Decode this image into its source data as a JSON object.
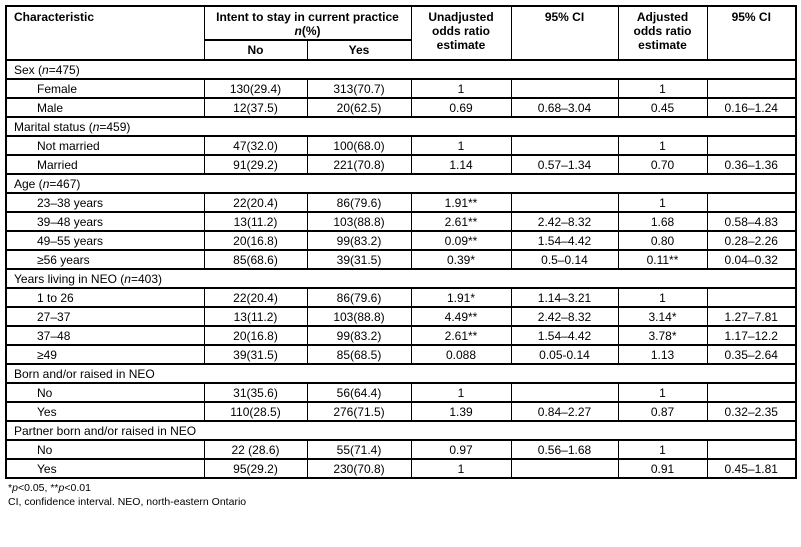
{
  "colors": {
    "border": "#000000",
    "background": "#ffffff",
    "text": "#000000"
  },
  "table": {
    "headers": {
      "characteristic": "Characteristic",
      "intent_line1": "Intent to stay in current practice",
      "intent_n": "n",
      "intent_pct": "(%)",
      "no": "No",
      "yes": "Yes",
      "unadjusted": "Unadjusted odds ratio estimate",
      "ci1": "95% CI",
      "adjusted": "Adjusted odds ratio estimate",
      "ci2": "95% CI"
    },
    "sections": [
      {
        "title_parts": [
          "Sex (",
          "n",
          "=475)"
        ],
        "rows": [
          {
            "label": "Female",
            "no": "130(29.4)",
            "yes": "313(70.7)",
            "uor": "1",
            "ci1": "",
            "aor": "1",
            "ci2": ""
          },
          {
            "label": "Male",
            "no": "12(37.5)",
            "yes": "20(62.5)",
            "uor": "0.69",
            "ci1": "0.68–3.04",
            "aor": "0.45",
            "ci2": "0.16–1.24"
          }
        ]
      },
      {
        "title_parts": [
          "Marital status (",
          "n",
          "=459)"
        ],
        "rows": [
          {
            "label": "Not married",
            "no": "47(32.0)",
            "yes": "100(68.0)",
            "uor": "1",
            "ci1": "",
            "aor": "1",
            "ci2": ""
          },
          {
            "label": "Married",
            "no": "91(29.2)",
            "yes": "221(70.8)",
            "uor": "1.14",
            "ci1": "0.57–1.34",
            "aor": "0.70",
            "ci2": "0.36–1.36"
          }
        ]
      },
      {
        "title_parts": [
          "Age (",
          "n",
          "=467)"
        ],
        "rows": [
          {
            "label": "23–38 years",
            "no": "22(20.4)",
            "yes": "86(79.6)",
            "uor": "1.91**",
            "ci1": "",
            "aor": "1",
            "ci2": ""
          },
          {
            "label": "39–48 years",
            "no": "13(11.2)",
            "yes": "103(88.8)",
            "uor": "2.61**",
            "ci1": "2.42–8.32",
            "aor": "1.68",
            "ci2": "0.58–4.83"
          },
          {
            "label": "49–55 years",
            "no": "20(16.8)",
            "yes": "99(83.2)",
            "uor": "0.09**",
            "ci1": "1.54–4.42",
            "aor": "0.80",
            "ci2": "0.28–2.26"
          },
          {
            "label": "≥56 years",
            "no": "85(68.6)",
            "yes": "39(31.5)",
            "uor": "0.39*",
            "ci1": "0.5–0.14",
            "aor": "0.11**",
            "ci2": "0.04–0.32"
          }
        ]
      },
      {
        "title_parts": [
          "Years living in NEO (",
          "n",
          "=403)"
        ],
        "rows": [
          {
            "label": "1 to 26",
            "no": "22(20.4)",
            "yes": "86(79.6)",
            "uor": "1.91*",
            "ci1": "1.14–3.21",
            "aor": "1",
            "ci2": ""
          },
          {
            "label": "27–37",
            "no": "13(11.2)",
            "yes": "103(88.8)",
            "uor": "4.49**",
            "ci1": "2.42–8.32",
            "aor": "3.14*",
            "ci2": "1.27–7.81"
          },
          {
            "label": "37–48",
            "no": "20(16.8)",
            "yes": "99(83.2)",
            "uor": "2.61**",
            "ci1": "1.54–4.42",
            "aor": "3.78*",
            "ci2": "1.17–12.2"
          },
          {
            "label": "≥49",
            "no": "39(31.5)",
            "yes": "85(68.5)",
            "uor": "0.088",
            "ci1": "0.05-0.14",
            "aor": "1.13",
            "ci2": "0.35–2.64"
          }
        ]
      },
      {
        "title_parts": [
          "Born and/or raised in NEO",
          "",
          ""
        ],
        "rows": [
          {
            "label": "No",
            "no": "31(35.6)",
            "yes": "56(64.4)",
            "uor": "1",
            "ci1": "",
            "aor": "1",
            "ci2": ""
          },
          {
            "label": "Yes",
            "no": "110(28.5)",
            "yes": "276(71.5)",
            "uor": "1.39",
            "ci1": "0.84–2.27",
            "aor": "0.87",
            "ci2": "0.32–2.35"
          }
        ]
      },
      {
        "title_parts": [
          "Partner born and/or raised in NEO",
          "",
          ""
        ],
        "rows": [
          {
            "label": "No",
            "no": "22 (28.6)",
            "yes": "55(71.4)",
            "uor": "0.97",
            "ci1": "0.56–1.68",
            "aor": "1",
            "ci2": ""
          },
          {
            "label": "Yes",
            "no": "95(29.2)",
            "yes": "230(70.8)",
            "uor": "1",
            "ci1": "",
            "aor": "0.91",
            "ci2": "0.45–1.81"
          }
        ]
      }
    ],
    "footnotes": {
      "line1_parts": [
        "*",
        "p",
        "<0.05, **",
        "p",
        "<0.01"
      ],
      "line2": "CI, confidence interval. NEO, north-eastern Ontario"
    }
  }
}
